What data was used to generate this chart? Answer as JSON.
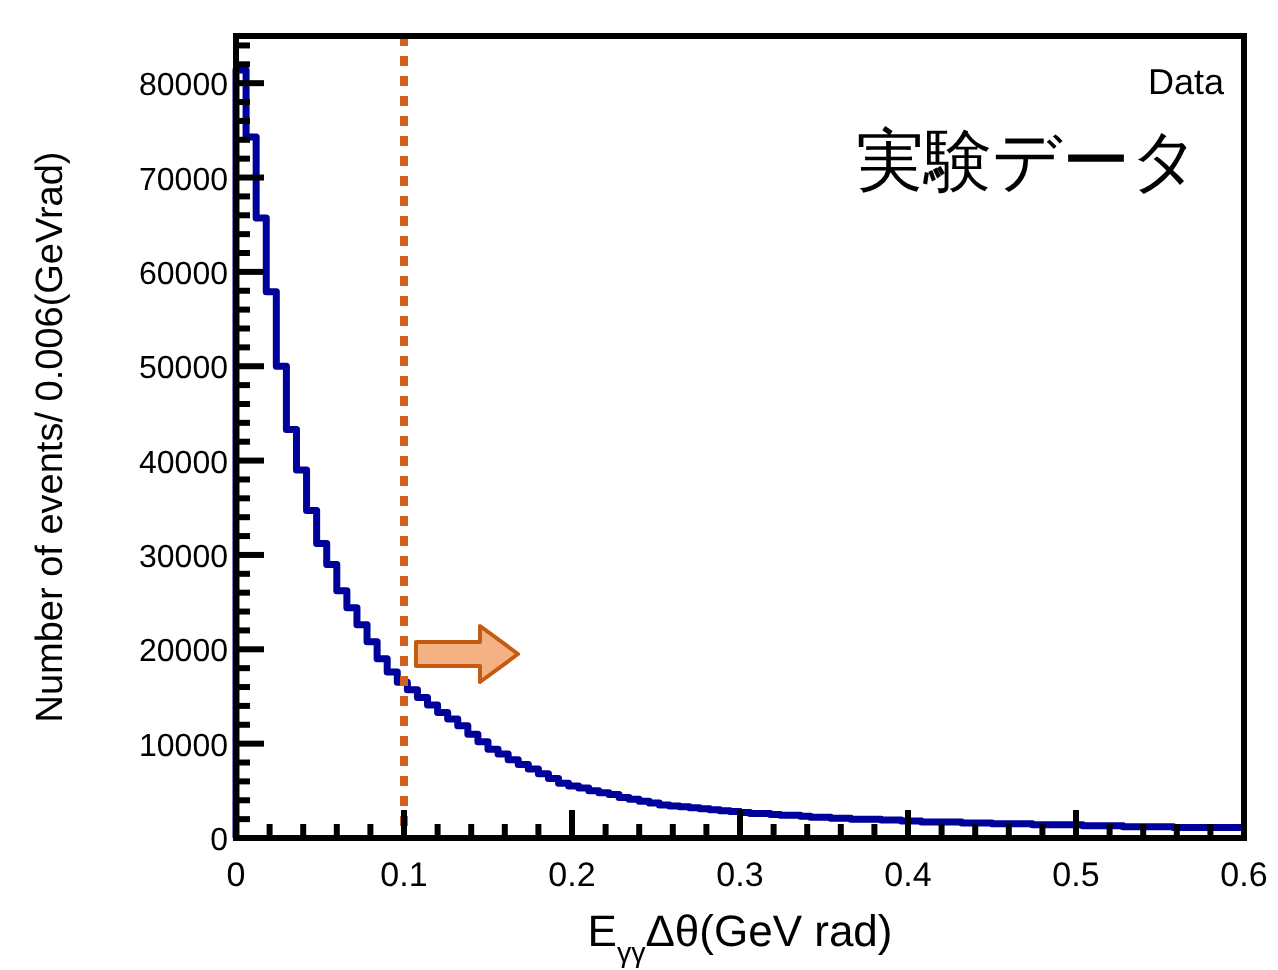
{
  "chart_data": {
    "type": "histogram",
    "xlabel": "E$_{γγ}$Δθ(GeV rad)",
    "ylabel": "Number of events/ 0.006(GeVrad)",
    "annotations": [
      "Data",
      "実験データ"
    ],
    "color": "#00009a",
    "bins": [
      0,
      0.006,
      0.012,
      0.018,
      0.024,
      0.03,
      0.036,
      0.042,
      0.048,
      0.054,
      0.06,
      0.066,
      0.072,
      0.078,
      0.084,
      0.09,
      0.096,
      0.102,
      0.108,
      0.114,
      0.12,
      0.126,
      0.132,
      0.138,
      0.144,
      0.15,
      0.156,
      0.162,
      0.168,
      0.174,
      0.18,
      0.186,
      0.192,
      0.198,
      0.204,
      0.21,
      0.216,
      0.222,
      0.228,
      0.234,
      0.24,
      0.246,
      0.252,
      0.258,
      0.264,
      0.27,
      0.276,
      0.282,
      0.288,
      0.294,
      0.3,
      0.306,
      0.312,
      0.318,
      0.324,
      0.33,
      0.336,
      0.342,
      0.348,
      0.354,
      0.36,
      0.366,
      0.372,
      0.378,
      0.384,
      0.39,
      0.396,
      0.402,
      0.408,
      0.414,
      0.42,
      0.426,
      0.432,
      0.438,
      0.444,
      0.45,
      0.456,
      0.462,
      0.468,
      0.474,
      0.48,
      0.486,
      0.492,
      0.498,
      0.504,
      0.51,
      0.516,
      0.522,
      0.528,
      0.534,
      0.54,
      0.546,
      0.552,
      0.558,
      0.564,
      0.57,
      0.576,
      0.582,
      0.588,
      0.594,
      0.6
    ],
    "values": [
      81400,
      74300,
      65700,
      57900,
      50000,
      43300,
      39000,
      34700,
      31200,
      29000,
      26200,
      24400,
      22600,
      20800,
      19000,
      17600,
      16500,
      15700,
      14900,
      14100,
      13300,
      12600,
      11900,
      11000,
      10200,
      9400,
      8900,
      8300,
      7800,
      7300,
      6800,
      6300,
      5800,
      5500,
      5300,
      5000,
      4800,
      4600,
      4300,
      4100,
      3900,
      3700,
      3500,
      3400,
      3300,
      3200,
      3100,
      3000,
      2900,
      2800,
      2700,
      2600,
      2600,
      2500,
      2400,
      2400,
      2300,
      2200,
      2200,
      2100,
      2100,
      2000,
      2000,
      2000,
      1900,
      1900,
      1800,
      1800,
      1700,
      1700,
      1700,
      1700,
      1600,
      1600,
      1600,
      1500,
      1500,
      1500,
      1500,
      1400,
      1400,
      1400,
      1400,
      1400,
      1300,
      1300,
      1300,
      1300,
      1200,
      1200,
      1200,
      1200,
      1200,
      1100,
      1100,
      1100,
      1100,
      1100,
      1100,
      1100
    ],
    "xlim": [
      0,
      0.6
    ],
    "xticks": [
      0,
      0.1,
      0.2,
      0.3,
      0.4,
      0.5,
      0.6
    ],
    "ylim": [
      0,
      85000
    ],
    "yticks": [
      0,
      10000,
      20000,
      30000,
      40000,
      50000,
      60000,
      70000,
      80000
    ],
    "ref_lines": [
      {
        "axis": "x",
        "value": 0.1,
        "color": "#d0601c",
        "line_style": "dotted"
      }
    ],
    "grid": false
  }
}
